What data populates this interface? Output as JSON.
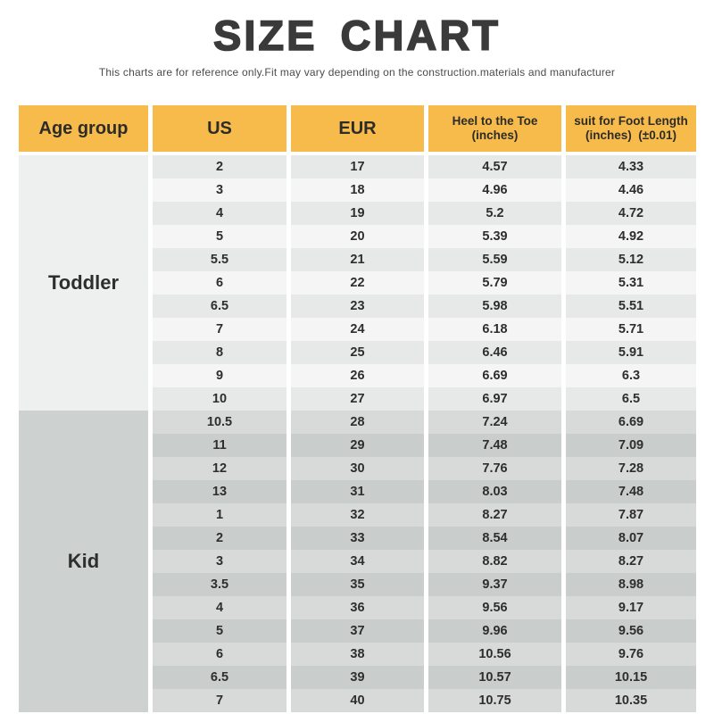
{
  "page": {
    "title": "SIZE CHART",
    "subtitle": "This charts are for reference only.Fit may vary depending on the construction.materials and manufacturer"
  },
  "colors": {
    "header_bg": "#F6BB4A",
    "title_text": "#3A3A3A",
    "cell_text": "#2E2E2E",
    "toddler_cell_bg": "#EEF0EF",
    "toddler_row_odd": "#E7E9E8",
    "toddler_row_even": "#F4F5F4",
    "kid_cell_bg": "#CDD1CF",
    "kid_row_odd": "#D7DAD8",
    "kid_row_even": "#C9CDCB"
  },
  "table": {
    "columns": [
      {
        "label": "Age group"
      },
      {
        "label": "US"
      },
      {
        "label": "EUR"
      },
      {
        "label": "Heel to the Toe",
        "sublabel": "(inches)"
      },
      {
        "label": "suit for Foot Length",
        "sublabel": "(inches)  (±0.01)"
      }
    ],
    "sections": [
      {
        "age_group": "Toddler",
        "cell_bg": "#EEF0EF",
        "row_bg_odd": "#E7E9E8",
        "row_bg_even": "#F4F5F4",
        "rows": [
          [
            "2",
            "17",
            "4.57",
            "4.33"
          ],
          [
            "3",
            "18",
            "4.96",
            "4.46"
          ],
          [
            "4",
            "19",
            "5.2",
            "4.72"
          ],
          [
            "5",
            "20",
            "5.39",
            "4.92"
          ],
          [
            "5.5",
            "21",
            "5.59",
            "5.12"
          ],
          [
            "6",
            "22",
            "5.79",
            "5.31"
          ],
          [
            "6.5",
            "23",
            "5.98",
            "5.51"
          ],
          [
            "7",
            "24",
            "6.18",
            "5.71"
          ],
          [
            "8",
            "25",
            "6.46",
            "5.91"
          ],
          [
            "9",
            "26",
            "6.69",
            "6.3"
          ],
          [
            "10",
            "27",
            "6.97",
            "6.5"
          ]
        ]
      },
      {
        "age_group": "Kid",
        "cell_bg": "#CDD1CF",
        "row_bg_odd": "#D7DAD8",
        "row_bg_even": "#C9CDCB",
        "rows": [
          [
            "10.5",
            "28",
            "7.24",
            "6.69"
          ],
          [
            "11",
            "29",
            "7.48",
            "7.09"
          ],
          [
            "12",
            "30",
            "7.76",
            "7.28"
          ],
          [
            "13",
            "31",
            "8.03",
            "7.48"
          ],
          [
            "1",
            "32",
            "8.27",
            "7.87"
          ],
          [
            "2",
            "33",
            "8.54",
            "8.07"
          ],
          [
            "3",
            "34",
            "8.82",
            "8.27"
          ],
          [
            "3.5",
            "35",
            "9.37",
            "8.98"
          ],
          [
            "4",
            "36",
            "9.56",
            "9.17"
          ],
          [
            "5",
            "37",
            "9.96",
            "9.56"
          ],
          [
            "6",
            "38",
            "10.56",
            "9.76"
          ],
          [
            "6.5",
            "39",
            "10.57",
            "10.15"
          ],
          [
            "7",
            "40",
            "10.75",
            "10.35"
          ]
        ]
      }
    ]
  }
}
